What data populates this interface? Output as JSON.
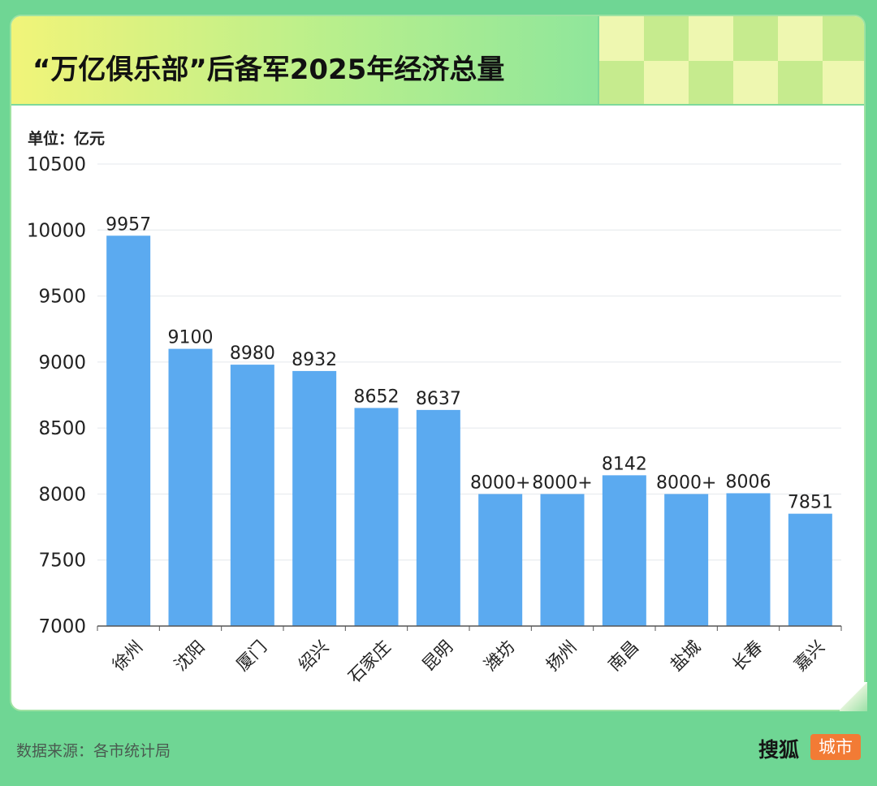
{
  "header": {
    "title": "“万亿俱乐部”后备军2025年经济总量"
  },
  "unit_label": "单位：亿元",
  "footer": {
    "source": "数据来源：各市统计局",
    "logo_main": "搜狐",
    "logo_sub": "城市"
  },
  "colors": {
    "bar": "#5baaf0",
    "grid": "#e4e8ec",
    "axis": "#555555",
    "text": "#222222"
  },
  "chart_data": {
    "type": "bar",
    "title": "“万亿俱乐部”后备军2025年经济总量",
    "ylabel": "单位：亿元",
    "xlabel": "",
    "ylim": [
      7000,
      10500
    ],
    "yticks": [
      7000,
      7500,
      8000,
      8500,
      9000,
      9500,
      10000,
      10500
    ],
    "grid": true,
    "categories": [
      "徐州",
      "沈阳",
      "厦门",
      "绍兴",
      "石家庄",
      "昆明",
      "潍坊",
      "扬州",
      "南昌",
      "盐城",
      "长春",
      "嘉兴"
    ],
    "values": [
      9957,
      9100,
      8980,
      8932,
      8652,
      8637,
      8000,
      8000,
      8142,
      8000,
      8006,
      7851
    ],
    "value_labels": [
      "9957",
      "9100",
      "8980",
      "8932",
      "8652",
      "8637",
      "8000+",
      "8000+",
      "8142",
      "8000+",
      "8006",
      "7851"
    ]
  }
}
